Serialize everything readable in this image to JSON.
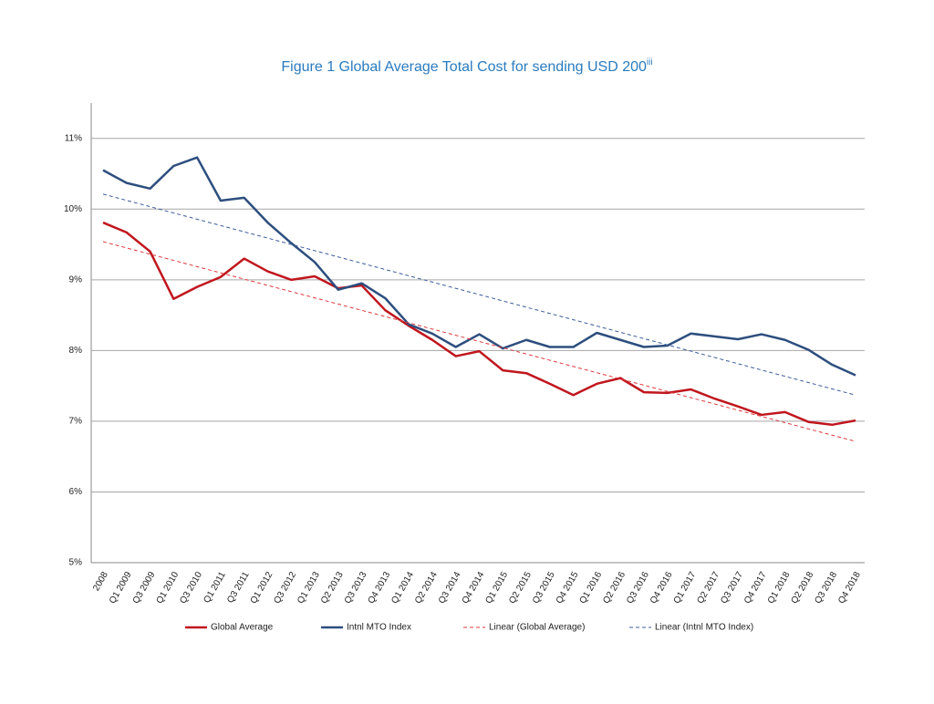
{
  "chart_data": {
    "type": "line",
    "title": "Figure 1 Global Average Total Cost for sending USD 200",
    "title_superscript": "iii",
    "categories": [
      "2008",
      "Q1 2009",
      "Q3 2009",
      "Q1 2010",
      "Q3 2010",
      "Q1 2011",
      "Q3 2011",
      "Q1 2012",
      "Q3 2012",
      "Q1 2013",
      "Q2 2013",
      "Q3 2013",
      "Q4 2013",
      "Q1 2014",
      "Q2 2014",
      "Q3 2014",
      "Q4 2014",
      "Q1 2015",
      "Q2 2015",
      "Q3 2015",
      "Q4 2015",
      "Q1 2016",
      "Q2 2016",
      "Q3 2016",
      "Q4 2016",
      "Q1 2017",
      "Q2 2017",
      "Q3 2017",
      "Q4 2017",
      "Q1 2018",
      "Q2 2018",
      "Q3 2018",
      "Q4 2018"
    ],
    "series": [
      {
        "name": "Global Average",
        "color": "#c0161e",
        "values": [
          9.81,
          9.67,
          9.4,
          8.73,
          8.9,
          9.04,
          9.3,
          9.12,
          9.0,
          9.05,
          8.88,
          8.92,
          8.57,
          8.35,
          8.15,
          7.92,
          7.99,
          7.72,
          7.68,
          7.53,
          7.37,
          7.53,
          7.61,
          7.41,
          7.4,
          7.45,
          7.32,
          7.21,
          7.09,
          7.13,
          6.99,
          6.95,
          7.01
        ]
      },
      {
        "name": "Intnl MTO Index",
        "color": "#2d4e7e",
        "values": [
          10.55,
          10.37,
          10.29,
          10.61,
          10.73,
          10.12,
          10.16,
          9.81,
          9.52,
          9.25,
          8.86,
          8.95,
          8.74,
          8.37,
          8.24,
          8.05,
          8.23,
          8.03,
          8.15,
          8.05,
          8.05,
          8.25,
          8.15,
          8.05,
          8.07,
          8.24,
          8.2,
          8.16,
          8.23,
          8.15,
          8.01,
          7.8,
          7.65
        ]
      }
    ],
    "trendlines": [
      {
        "name": "Linear (Global Average)",
        "color": "#e0393e",
        "fit": "linear",
        "of_series": 0
      },
      {
        "name": "Linear (Intnl MTO Index)",
        "color": "#3c5c9a",
        "fit": "linear",
        "of_series": 1
      }
    ],
    "ylim": [
      5,
      11.5
    ],
    "yticks": [
      {
        "value": 5,
        "label": "5%"
      },
      {
        "value": 6,
        "label": "6%"
      },
      {
        "value": 7,
        "label": "7%"
      },
      {
        "value": 8,
        "label": "8%"
      },
      {
        "value": 9,
        "label": "9%"
      },
      {
        "value": 10,
        "label": "10%"
      },
      {
        "value": 11,
        "label": "11%"
      }
    ],
    "grid": true,
    "legend": "bottom"
  }
}
